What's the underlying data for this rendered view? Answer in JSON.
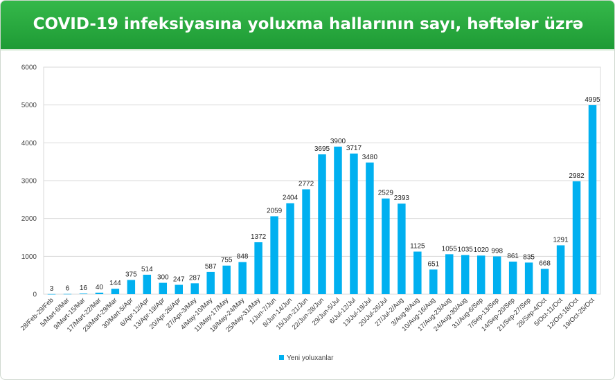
{
  "header": {
    "title": "COVID-19 infeksiyasına yoluxma hallarının sayı, həftələr üzrə"
  },
  "chart_data": {
    "type": "bar",
    "title": "COVID-19 infeksiyasına yoluxma hallarının sayı, həftələr üzrə",
    "ylim": [
      0,
      6000
    ],
    "yticks": [
      0,
      1000,
      2000,
      3000,
      4000,
      5000,
      6000
    ],
    "grid": true,
    "legend_position": "bottom",
    "bar_color": "#00b0f0",
    "categories": [
      "28/Feb-29/Feb",
      "5/Mart-6/Mar",
      "9/Mart-15/Mar",
      "17/Mart-22/Mar",
      "23/Mart-29/Mar",
      "30/Mart-5/Apr",
      "6/Apr-12/Apr",
      "13/Apr-19/Apr",
      "20/Apr-26/Apr",
      "27/Apr-3/May",
      "4/May-10/May",
      "11/May-17/May",
      "18/May-24/May",
      "25/May-31/May",
      "1/Jun-7/Jun",
      "8/Jun-14/Jun",
      "15/Jun-21/Jun",
      "22/Jun-28/Jun",
      "29/Jun-5/Jul",
      "6/Jul-12/Jul",
      "13/Jul-19/Jul",
      "20/Jul-26/Jul",
      "27/Jul-2/Aug",
      "3/Aug-9/Aug",
      "10/Aug-16/Aug",
      "17/Aug-23/Aug",
      "24/Aug-30/Aug",
      "31/Aug-6/Sep",
      "7/Sep-13/Sep",
      "14/Sep-20/Sep",
      "21/Sep-27/Sep",
      "28/Sep-4/Oct",
      "5/Oct-11/Oct",
      "12/Oct-18/Oct",
      "19/Oct-25/Oct"
    ],
    "series": [
      {
        "name": "Yeni yoluxanlar",
        "values": [
          3,
          6,
          16,
          40,
          144,
          375,
          514,
          300,
          247,
          287,
          587,
          755,
          848,
          1372,
          2059,
          2404,
          2772,
          3695,
          3900,
          3717,
          3480,
          2529,
          2393,
          1125,
          651,
          1055,
          1035,
          1020,
          998,
          861,
          835,
          668,
          1291,
          2982,
          4995
        ]
      }
    ]
  }
}
